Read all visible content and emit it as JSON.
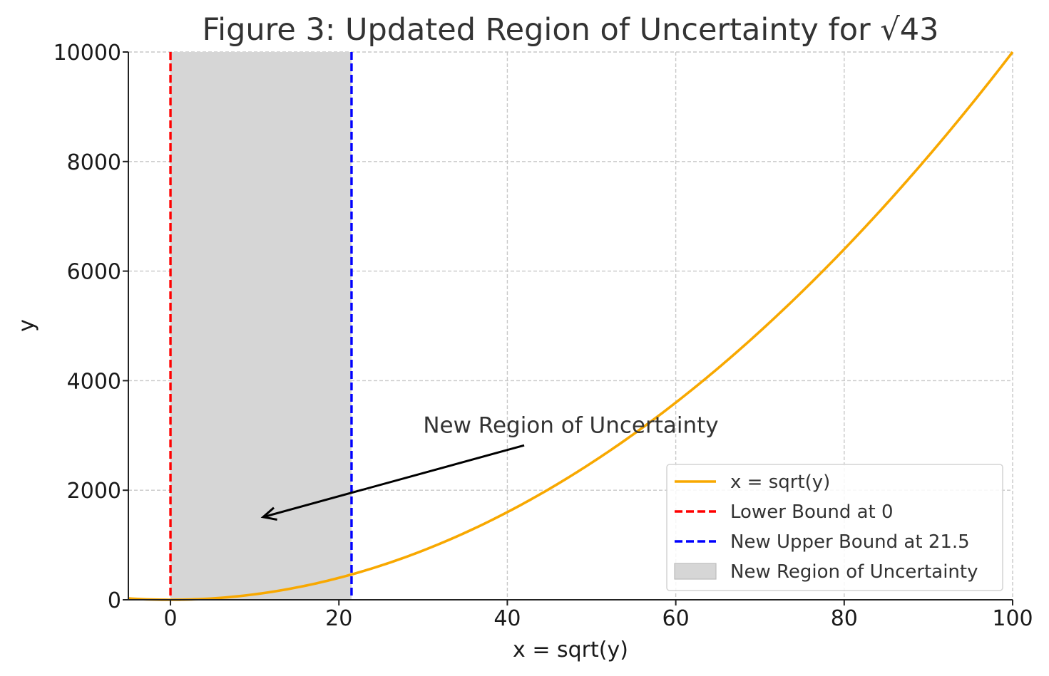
{
  "chart_data": {
    "type": "line",
    "title": "Figure 3: Updated Region of Uncertainty for √43",
    "xlabel": "x = sqrt(y)",
    "ylabel": "y",
    "xlim": [
      -5,
      100
    ],
    "ylim": [
      0,
      10000
    ],
    "x_ticks": [
      0,
      20,
      40,
      60,
      80,
      100
    ],
    "y_ticks": [
      0,
      2000,
      4000,
      6000,
      8000,
      10000
    ],
    "grid": true,
    "legend_position": "lower-right",
    "series": [
      {
        "name": "x = sqrt(y)",
        "kind": "line",
        "color": "#f8a800",
        "x": [
          -5,
          0,
          10,
          20,
          21.5,
          30,
          40,
          50,
          60,
          70,
          80,
          90,
          100
        ],
        "y": [
          25,
          0,
          100,
          400,
          462.25,
          900,
          1600,
          2500,
          3600,
          4900,
          6400,
          8100,
          10000
        ]
      },
      {
        "name": "Lower Bound at 0",
        "kind": "vline",
        "x": 0,
        "color": "#ff0000"
      },
      {
        "name": "New Upper Bound at 21.5",
        "kind": "vline",
        "x": 21.5,
        "color": "#0000ff"
      },
      {
        "name": "New Region of Uncertainty",
        "kind": "span",
        "x": [
          0,
          21.5
        ],
        "color": "#d6d6d6"
      }
    ],
    "annotations": [
      {
        "text": "New Region of Uncertainty",
        "text_at": [
          30,
          3050
        ],
        "arrow_from": [
          42,
          2820
        ],
        "arrow_to": [
          11,
          1510
        ]
      }
    ]
  }
}
